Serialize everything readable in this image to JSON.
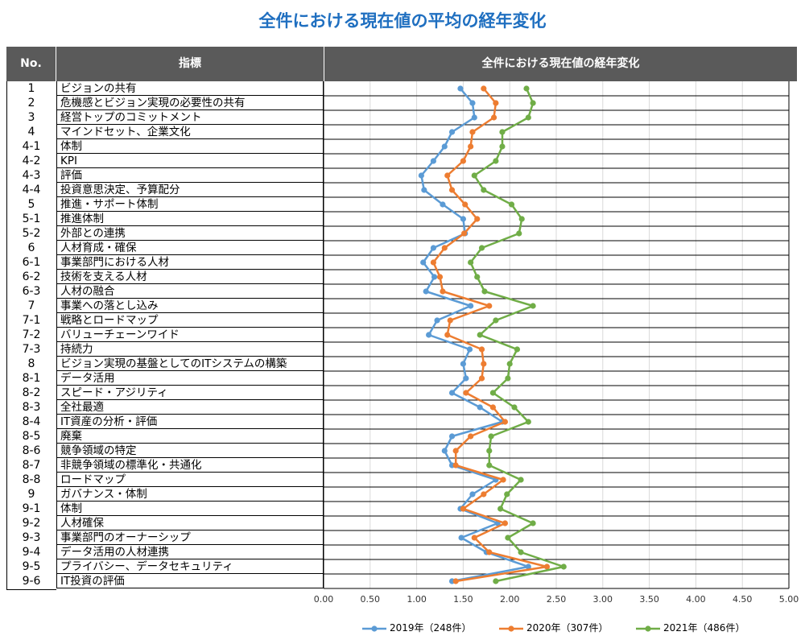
{
  "title": "全件における現在値の平均の経年変化",
  "table": {
    "col_no": "No.",
    "col_indicator": "指標",
    "col_chart": "全件における現在値の経年変化"
  },
  "colors": {
    "s2019": "#5b9bd5",
    "s2020": "#ed7d31",
    "s2021": "#70ad47",
    "header": "#5a5a5a",
    "title": "#1f6fc0"
  },
  "chart_data": {
    "type": "line",
    "orientation": "horizontal",
    "xlim": [
      0,
      5
    ],
    "xticks": [
      "0.00",
      "0.50",
      "1.00",
      "1.50",
      "2.00",
      "2.50",
      "3.00",
      "3.50",
      "4.00",
      "4.50",
      "5.00"
    ],
    "grid": true,
    "legend_position": "bottom",
    "categories": [
      {
        "no": "1",
        "label": "ビジョンの共有"
      },
      {
        "no": "2",
        "label": "危機感とビジョン実現の必要性の共有"
      },
      {
        "no": "3",
        "label": "経営トップのコミットメント"
      },
      {
        "no": "4",
        "label": "マインドセット、企業文化"
      },
      {
        "no": "4-1",
        "label": "体制"
      },
      {
        "no": "4-2",
        "label": "KPI"
      },
      {
        "no": "4-3",
        "label": "評価"
      },
      {
        "no": "4-4",
        "label": "投資意思決定、予算配分"
      },
      {
        "no": "5",
        "label": "推進・サポート体制"
      },
      {
        "no": "5-1",
        "label": "推進体制"
      },
      {
        "no": "5-2",
        "label": "外部との連携"
      },
      {
        "no": "6",
        "label": "人材育成・確保"
      },
      {
        "no": "6-1",
        "label": "事業部門における人材"
      },
      {
        "no": "6-2",
        "label": "技術を支える人材"
      },
      {
        "no": "6-3",
        "label": "人材の融合"
      },
      {
        "no": "7",
        "label": "事業への落とし込み"
      },
      {
        "no": "7-1",
        "label": "戦略とロードマップ"
      },
      {
        "no": "7-2",
        "label": "バリューチェーンワイド"
      },
      {
        "no": "7-3",
        "label": "持続力"
      },
      {
        "no": "8",
        "label": "ビジョン実現の基盤としてのITシステムの構築"
      },
      {
        "no": "8-1",
        "label": "データ活用"
      },
      {
        "no": "8-2",
        "label": "スピード・アジリティ"
      },
      {
        "no": "8-3",
        "label": "全社最適"
      },
      {
        "no": "8-4",
        "label": "IT資産の分析・評価"
      },
      {
        "no": "8-5",
        "label": "廃棄"
      },
      {
        "no": "8-6",
        "label": "競争領域の特定"
      },
      {
        "no": "8-7",
        "label": "非競争領域の標準化・共通化"
      },
      {
        "no": "8-8",
        "label": "ロードマップ"
      },
      {
        "no": "9",
        "label": "ガバナンス・体制"
      },
      {
        "no": "9-1",
        "label": "体制"
      },
      {
        "no": "9-2",
        "label": "人材確保"
      },
      {
        "no": "9-3",
        "label": "事業部門のオーナーシップ"
      },
      {
        "no": "9-4",
        "label": "データ活用の人材連携"
      },
      {
        "no": "9-5",
        "label": "プライバシー、データセキュリティ"
      },
      {
        "no": "9-6",
        "label": "IT投資の評価"
      }
    ],
    "series": [
      {
        "name": "2019年（248件）",
        "color": "#5b9bd5",
        "values": [
          1.47,
          1.6,
          1.62,
          1.38,
          1.3,
          1.18,
          1.05,
          1.08,
          1.28,
          1.5,
          1.52,
          1.18,
          1.07,
          1.19,
          1.1,
          1.58,
          1.22,
          1.13,
          1.57,
          1.5,
          1.53,
          1.38,
          1.68,
          1.92,
          1.38,
          1.3,
          1.38,
          1.85,
          1.6,
          1.47,
          1.87,
          1.48,
          1.75,
          2.2,
          1.38
        ]
      },
      {
        "name": "2020年（307件）",
        "color": "#ed7d31",
        "values": [
          1.72,
          1.85,
          1.83,
          1.6,
          1.58,
          1.5,
          1.33,
          1.38,
          1.52,
          1.65,
          1.51,
          1.3,
          1.18,
          1.25,
          1.28,
          1.78,
          1.36,
          1.33,
          1.7,
          1.72,
          1.7,
          1.53,
          1.82,
          1.95,
          1.58,
          1.42,
          1.42,
          1.93,
          1.72,
          1.5,
          1.95,
          1.62,
          1.78,
          2.4,
          1.42
        ]
      },
      {
        "name": "2021年（486件）",
        "color": "#70ad47",
        "values": [
          2.18,
          2.25,
          2.2,
          1.92,
          1.92,
          1.85,
          1.62,
          1.72,
          2.02,
          2.13,
          2.1,
          1.7,
          1.58,
          1.65,
          1.73,
          2.25,
          1.85,
          1.68,
          2.08,
          2.0,
          1.98,
          1.82,
          2.05,
          2.2,
          1.8,
          1.78,
          1.78,
          2.12,
          1.97,
          1.9,
          2.25,
          1.98,
          2.12,
          2.58,
          1.85
        ]
      }
    ]
  }
}
